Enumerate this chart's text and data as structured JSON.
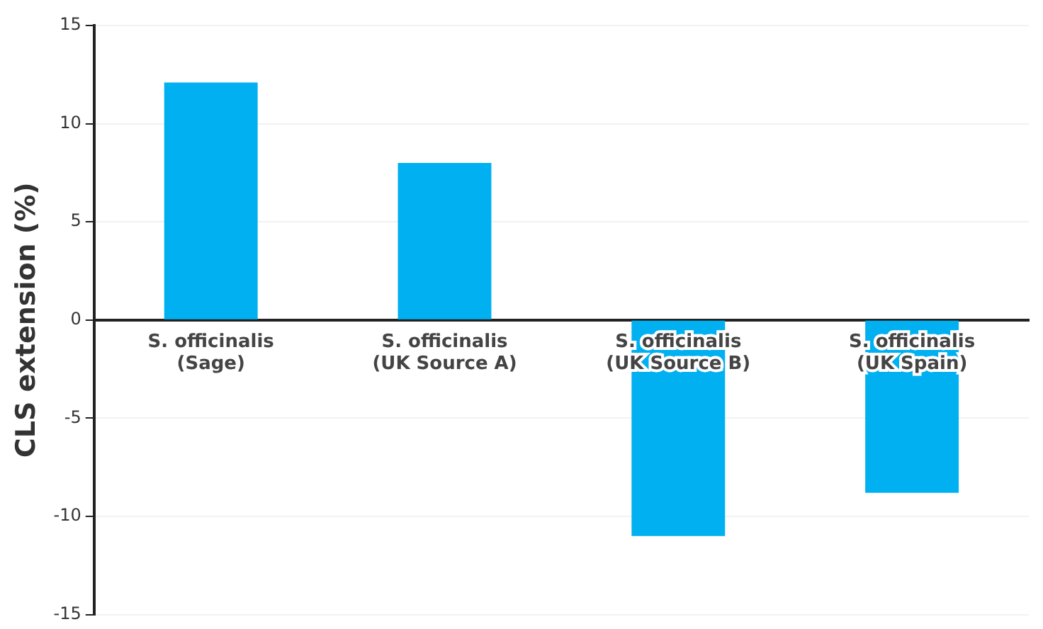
{
  "chart_data": {
    "type": "bar",
    "ylabel": "CLS extension (%)",
    "categories": [
      "S. officinalis\n(Sage)",
      "S. officinalis\n(UK Source A)",
      "S. officinalis\n(UK Source B)",
      "S. officinalis\n(UK Spain)"
    ],
    "values": [
      12.1,
      8,
      -11,
      -8.8
    ],
    "color": "#00b0f0",
    "ylim": [
      -15,
      15
    ],
    "yticks": [
      -15,
      -10,
      -5,
      0,
      5,
      10,
      15
    ],
    "grid": "y"
  }
}
